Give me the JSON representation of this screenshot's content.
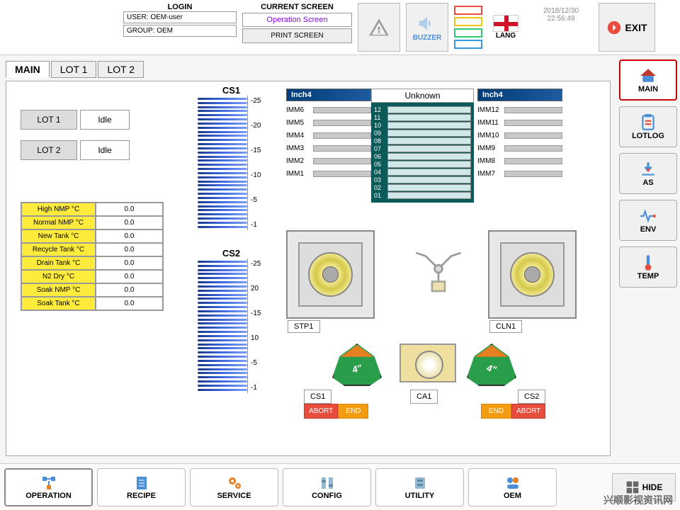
{
  "header": {
    "login_title": "LOGIN",
    "user_label": "USER: OEM-user",
    "group_label": "GROUP: OEM",
    "screen_title": "CURRENT SCREEN",
    "screen_name": "Operation Screen",
    "print_label": "PRINT SCREEN",
    "buzzer_label": "BUZZER",
    "lang_label": "LANG",
    "date": "2018/12/30",
    "time": "22:56:49",
    "exit_label": "EXIT",
    "status_colors": [
      "#e74c3c",
      "#f1c40f",
      "#2ecc71",
      "#3498db"
    ]
  },
  "tabs": {
    "main": "MAIN",
    "lot1": "LOT 1",
    "lot2": "LOT 2"
  },
  "lots": [
    {
      "name": "LOT 1",
      "status": "Idle"
    },
    {
      "name": "LOT 2",
      "status": "Idle"
    }
  ],
  "temps": [
    {
      "label": "High NMP °C",
      "val": "0.0"
    },
    {
      "label": "Normal NMP °C",
      "val": "0.0"
    },
    {
      "label": "New Tank °C",
      "val": "0.0"
    },
    {
      "label": "Recycle Tank °C",
      "val": "0.0"
    },
    {
      "label": "Drain Tank °C",
      "val": "0.0"
    },
    {
      "label": "N2 Dry °C",
      "val": "0.0"
    },
    {
      "label": "Soak NMP °C",
      "val": "0.0"
    },
    {
      "label": "Soak Tank °C",
      "val": "0.0"
    }
  ],
  "gauges": {
    "cs1": {
      "title": "CS1",
      "ticks": [
        "-25",
        "-20",
        "-15",
        "-10",
        "-5",
        "-1"
      ]
    },
    "cs2": {
      "title": "CS2",
      "ticks": [
        "-25",
        "20",
        "-15",
        "10",
        "-5",
        "-1"
      ]
    }
  },
  "imm_left": {
    "hdr": "Inch4",
    "slots": [
      "IMM6",
      "IMM5",
      "IMM4",
      "IMM3",
      "IMM2",
      "IMM1"
    ]
  },
  "imm_right": {
    "hdr": "Inch4",
    "slots": [
      "IMM12",
      "IMM11",
      "IMM10",
      "IMM9",
      "IMM8",
      "IMM7"
    ]
  },
  "unknown": {
    "title": "Unknown",
    "slots": [
      "12",
      "11",
      "10",
      "09",
      "08",
      "07",
      "06",
      "05",
      "04",
      "03",
      "02",
      "01"
    ]
  },
  "machines": {
    "stp1": "STP1",
    "cln1": "CLN1"
  },
  "carriers": {
    "size": "4\""
  },
  "controls": {
    "cs1": "CS1",
    "cs2": "CS2",
    "ca1": "CA1",
    "abort": "ABORT",
    "end": "END"
  },
  "sidebar": {
    "main": "MAIN",
    "lotlog": "LOTLOG",
    "as": "AS",
    "env": "ENV",
    "temp": "TEMP"
  },
  "bottom": {
    "operation": "OPERATION",
    "recipe": "RECIPE",
    "service": "SERVICE",
    "config": "CONFIG",
    "utility": "UTILITY",
    "oem": "OEM",
    "hide": "HIDE"
  },
  "watermark": "兴顺影视资讯网"
}
